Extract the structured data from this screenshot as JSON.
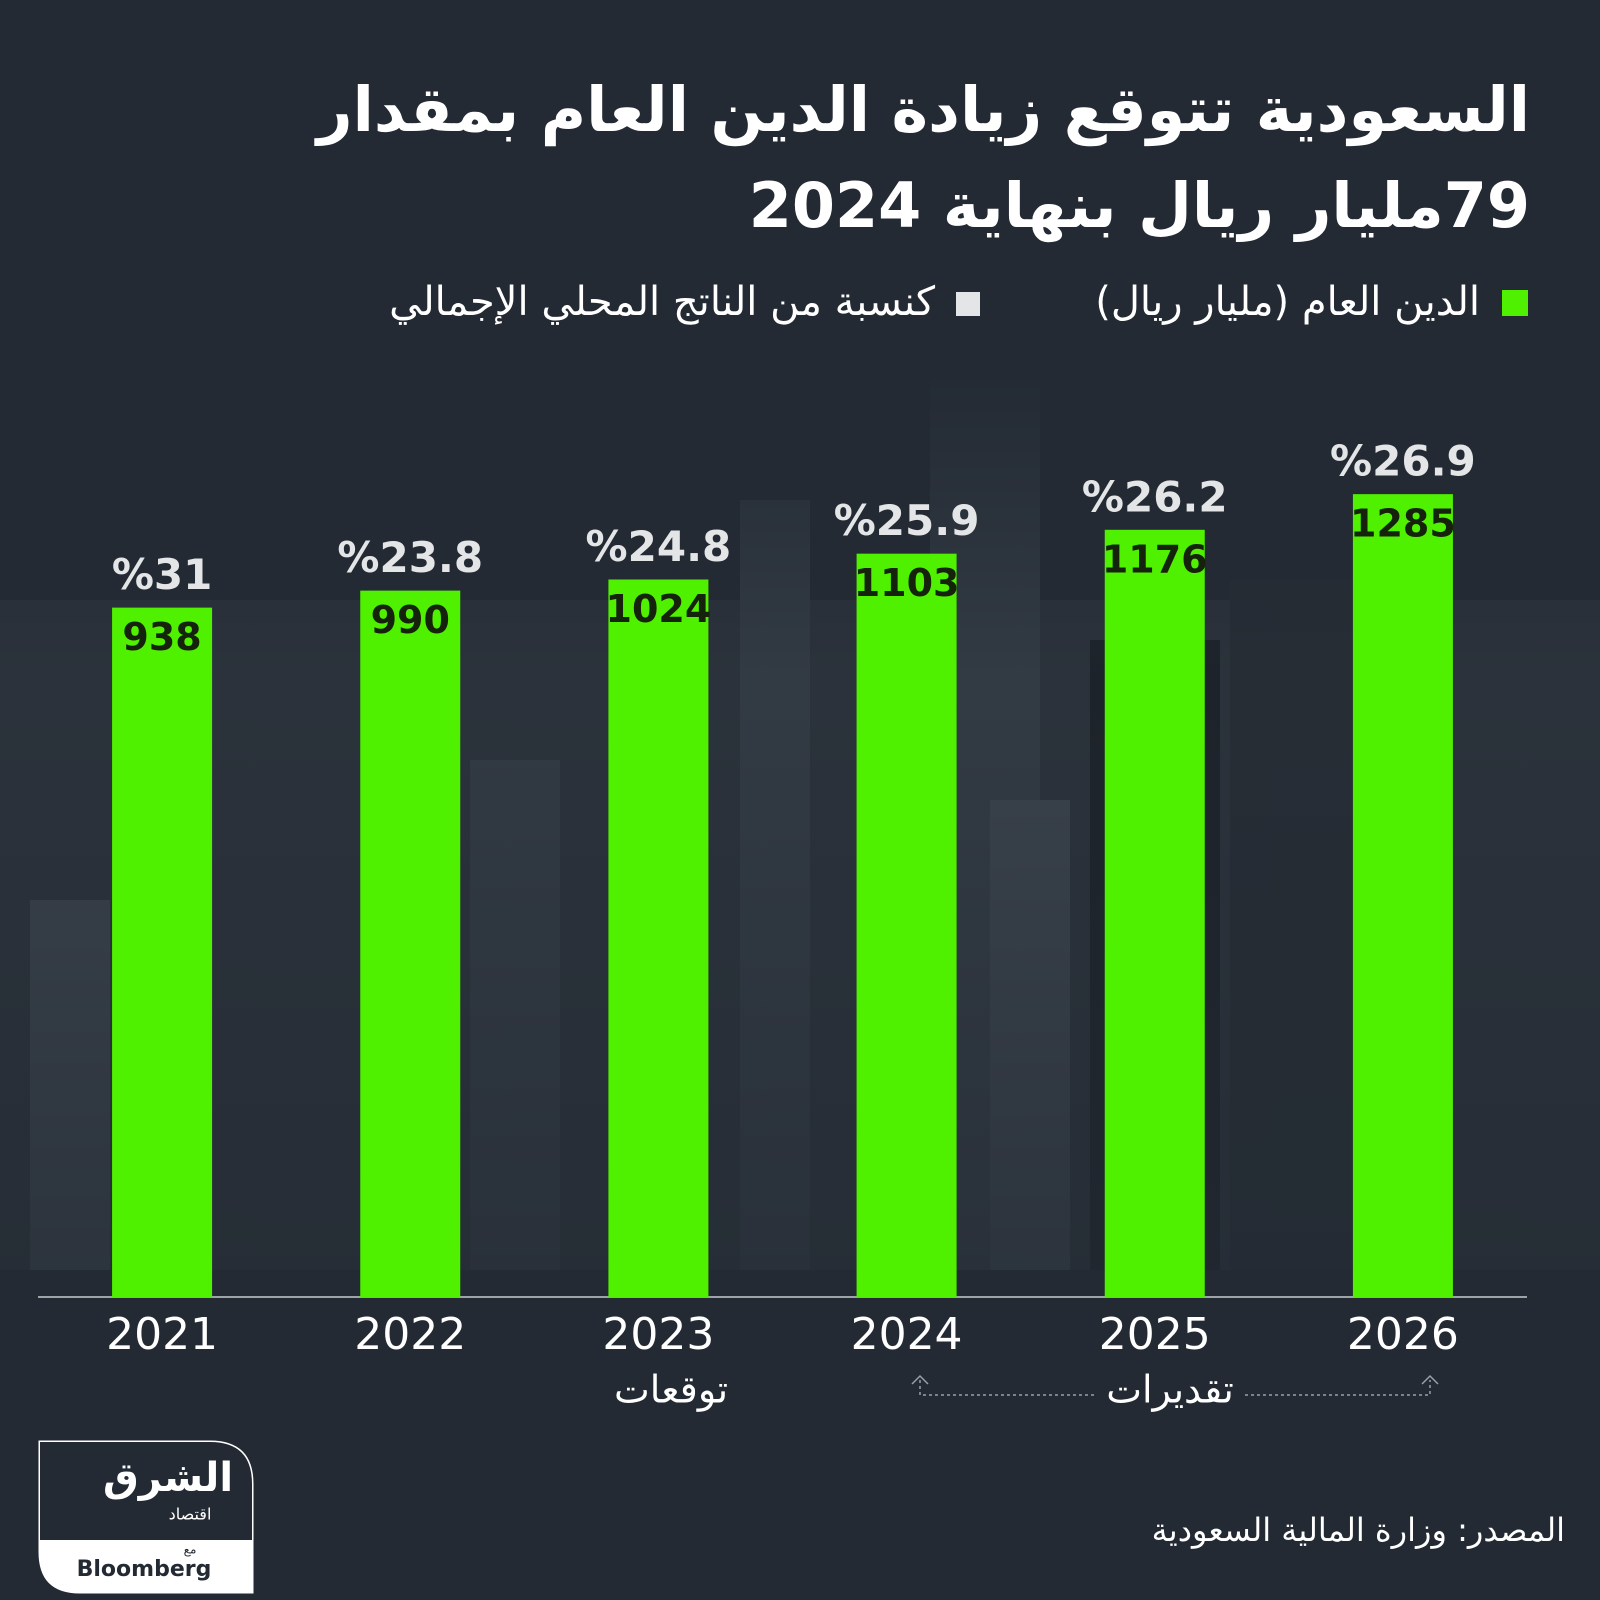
{
  "chart_data": {
    "type": "bar",
    "title": "السعودية تتوقع زيادة الدين العام بمقدار 79مليار ريال بنهاية 2024",
    "categories": [
      "2021",
      "2022",
      "2023",
      "2024",
      "2025",
      "2026"
    ],
    "series": [
      {
        "name": "الدين العام (مليار ريال)",
        "color": "#4ff000",
        "values": [
          938,
          990,
          1024,
          1103,
          1176,
          1285
        ]
      },
      {
        "name": "كنسبة من الناتج المحلي الإجمالي",
        "color": "#e3e5e6",
        "values": [
          31,
          23.8,
          24.8,
          25.9,
          26.2,
          26.9
        ],
        "value_labels": [
          "%31",
          "%23.8",
          "%24.8",
          "%25.9",
          "%26.2",
          "%26.9"
        ]
      }
    ],
    "ylim": [
      -1170,
      1420
    ],
    "annotations": [
      "توقعات",
      "تقديرات"
    ],
    "source": "المصدر: وزارة المالية السعودية"
  },
  "logo": [
    "الشرق",
    "اقتصاد",
    "مع",
    "Bloomberg"
  ]
}
